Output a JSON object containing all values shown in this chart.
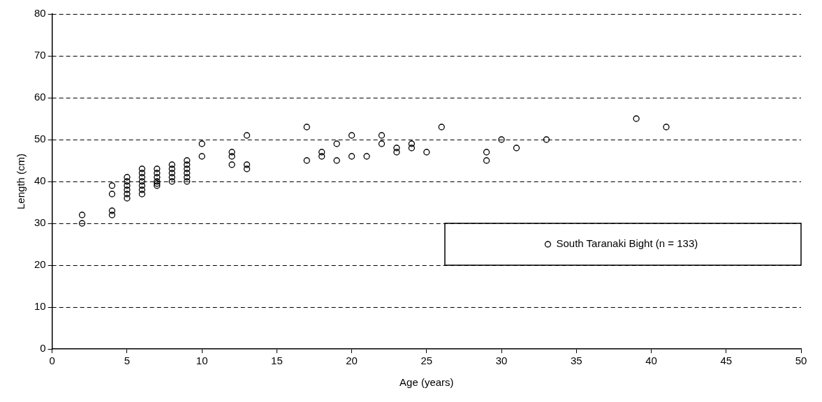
{
  "chart_data": {
    "type": "scatter",
    "xlabel": "Age (years)",
    "ylabel": "Length (cm)",
    "series": [
      {
        "name": "South Taranaki Bight (n = 133)",
        "color": "#000000",
        "x": [
          2,
          2,
          4,
          4,
          4,
          4,
          5,
          5,
          5,
          5,
          5,
          5,
          6,
          6,
          6,
          6,
          6,
          6,
          6,
          7,
          7,
          7,
          7,
          7,
          7,
          8,
          8,
          8,
          8,
          8,
          9,
          9,
          9,
          9,
          9,
          9,
          10,
          10,
          12,
          12,
          12,
          13,
          13,
          13,
          17,
          17,
          18,
          18,
          19,
          19,
          20,
          20,
          21,
          22,
          22,
          23,
          23,
          24,
          24,
          25,
          26,
          29,
          29,
          30,
          31,
          33,
          39,
          41
        ],
        "values": [
          30,
          32,
          32,
          33,
          37,
          39,
          36,
          37,
          38,
          39,
          40,
          41,
          37,
          38,
          39,
          40,
          41,
          42,
          43,
          39,
          39.5,
          40,
          41,
          42,
          43,
          40,
          41,
          42,
          43,
          44,
          40,
          41,
          42,
          43,
          44,
          45,
          46,
          49,
          44,
          46,
          47,
          43,
          44,
          51,
          45,
          53,
          46,
          47,
          45,
          49,
          46,
          51,
          46,
          49,
          51,
          47,
          48,
          48,
          49,
          47,
          53,
          45,
          47,
          50,
          48,
          50,
          55,
          53
        ]
      }
    ],
    "xlim": [
      0,
      50
    ],
    "xticks": [
      0,
      5,
      10,
      15,
      20,
      25,
      30,
      35,
      40,
      45,
      50
    ],
    "ylim": [
      0,
      80
    ],
    "yticks": [
      0,
      10,
      20,
      30,
      40,
      50,
      60,
      70,
      80
    ],
    "grid": "y",
    "legend": "bottom right",
    "marker": "circle"
  }
}
